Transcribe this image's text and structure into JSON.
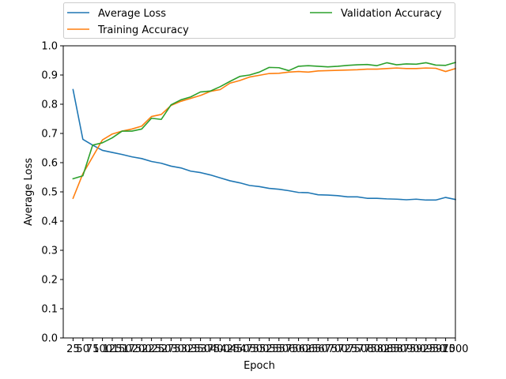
{
  "chart_data": {
    "type": "line",
    "title": "",
    "xlabel": "Epoch",
    "ylabel": "Average Loss",
    "ylim": [
      0.0,
      1.0
    ],
    "yticks": [
      "0.0",
      "0.1",
      "0.2",
      "0.3",
      "0.4",
      "0.5",
      "0.6",
      "0.7",
      "0.8",
      "0.9",
      "1.0"
    ],
    "x": [
      25,
      50,
      75,
      100,
      125,
      150,
      175,
      200,
      225,
      250,
      275,
      300,
      325,
      350,
      375,
      400,
      425,
      450,
      475,
      500,
      525,
      550,
      575,
      600,
      625,
      650,
      675,
      700,
      725,
      750,
      775,
      800,
      825,
      850,
      875,
      900,
      925,
      950,
      975,
      1000
    ],
    "xticks": [
      "25",
      "50",
      "75",
      "100",
      "125",
      "150",
      "175",
      "200",
      "225",
      "250",
      "275",
      "300",
      "325",
      "350",
      "375",
      "400",
      "425",
      "450",
      "475",
      "500",
      "525",
      "550",
      "575",
      "600",
      "625",
      "650",
      "675",
      "700",
      "725",
      "750",
      "775",
      "800",
      "825",
      "850",
      "875",
      "900",
      "925",
      "950",
      "975",
      "1000"
    ],
    "grid": false,
    "legend": "above-plot",
    "series": [
      {
        "name": "Average Loss",
        "color": "#1f77b4",
        "values": [
          0.85,
          0.68,
          0.66,
          0.642,
          0.635,
          0.628,
          0.62,
          0.614,
          0.604,
          0.598,
          0.588,
          0.582,
          0.571,
          0.566,
          0.558,
          0.548,
          0.538,
          0.531,
          0.522,
          0.518,
          0.512,
          0.509,
          0.504,
          0.498,
          0.497,
          0.49,
          0.489,
          0.487,
          0.483,
          0.483,
          0.478,
          0.478,
          0.476,
          0.475,
          0.473,
          0.475,
          0.472,
          0.472,
          0.481,
          0.474
        ]
      },
      {
        "name": "Training Accuracy",
        "color": "#ff7f0e",
        "values": [
          0.478,
          0.562,
          0.62,
          0.678,
          0.698,
          0.708,
          0.715,
          0.725,
          0.758,
          0.765,
          0.796,
          0.81,
          0.82,
          0.83,
          0.844,
          0.85,
          0.872,
          0.881,
          0.893,
          0.899,
          0.905,
          0.906,
          0.91,
          0.912,
          0.91,
          0.914,
          0.915,
          0.916,
          0.917,
          0.918,
          0.92,
          0.92,
          0.922,
          0.924,
          0.922,
          0.922,
          0.924,
          0.923,
          0.912,
          0.922
        ]
      },
      {
        "name": "Validation Accuracy",
        "color": "#2ca02c",
        "values": [
          0.545,
          0.555,
          0.66,
          0.668,
          0.685,
          0.708,
          0.708,
          0.715,
          0.752,
          0.748,
          0.798,
          0.815,
          0.825,
          0.842,
          0.845,
          0.86,
          0.878,
          0.895,
          0.9,
          0.91,
          0.926,
          0.925,
          0.915,
          0.93,
          0.932,
          0.93,
          0.928,
          0.93,
          0.933,
          0.935,
          0.936,
          0.932,
          0.942,
          0.935,
          0.938,
          0.937,
          0.942,
          0.934,
          0.933,
          0.943
        ]
      }
    ]
  }
}
